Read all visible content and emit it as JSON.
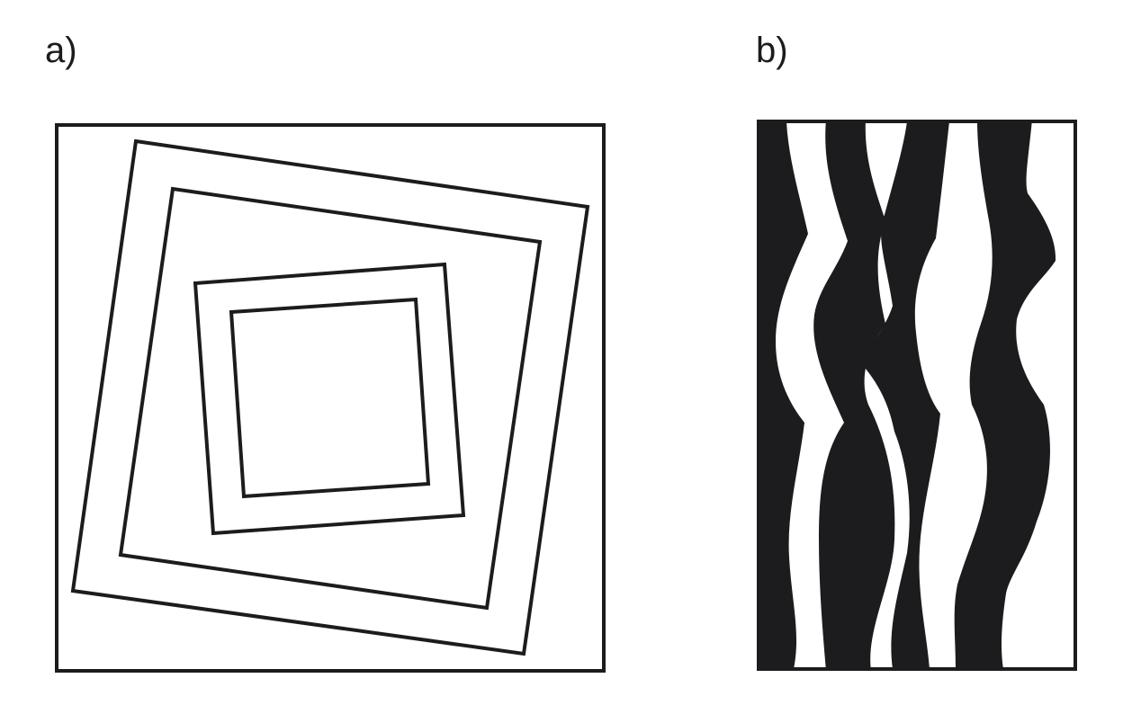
{
  "panels": {
    "a": {
      "label": "a)"
    },
    "b": {
      "label": "b)"
    }
  },
  "colors": {
    "ink": "#1c1c1e",
    "paper": "#ffffff"
  }
}
